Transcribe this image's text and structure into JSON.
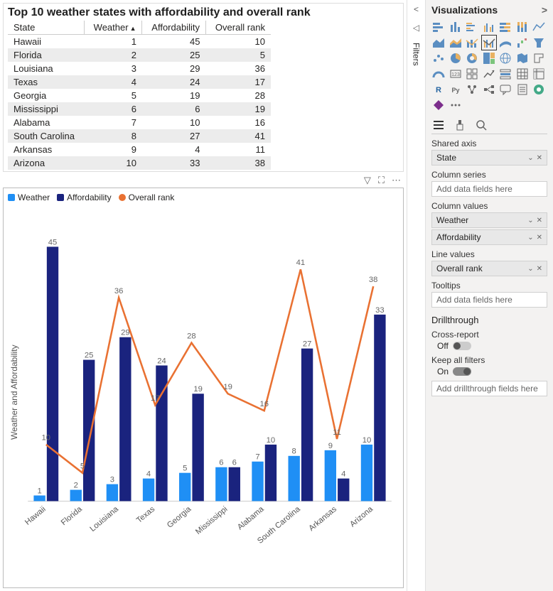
{
  "table": {
    "title": "Top 10 weather states with affordability and overall rank",
    "columns": [
      "State",
      "Weather",
      "Affordability",
      "Overall rank"
    ],
    "rows": [
      [
        "Hawaii",
        1,
        45,
        10
      ],
      [
        "Florida",
        2,
        25,
        5
      ],
      [
        "Louisiana",
        3,
        29,
        36
      ],
      [
        "Texas",
        4,
        24,
        17
      ],
      [
        "Georgia",
        5,
        19,
        28
      ],
      [
        "Mississippi",
        6,
        6,
        19
      ],
      [
        "Alabama",
        7,
        10,
        16
      ],
      [
        "South Carolina",
        8,
        27,
        41
      ],
      [
        "Arkansas",
        9,
        4,
        11
      ],
      [
        "Arizona",
        10,
        33,
        38
      ]
    ],
    "sort_column": 1
  },
  "chart": {
    "type": "combo-bar-line",
    "legend": [
      {
        "label": "Weather",
        "color": "#1f8ff5",
        "shape": "square"
      },
      {
        "label": "Affordability",
        "color": "#1a237e",
        "shape": "square"
      },
      {
        "label": "Overall rank",
        "color": "#e97132",
        "shape": "circle"
      }
    ],
    "y_axis_label": "Weather and Affordability",
    "ymax": 45,
    "categories": [
      "Hawaii",
      "Florida",
      "Louisiana",
      "Texas",
      "Georgia",
      "Mississippi",
      "Alabama",
      "South Carolina",
      "Arkansas",
      "Arizona"
    ],
    "series": {
      "weather": [
        1,
        2,
        3,
        4,
        5,
        6,
        7,
        8,
        9,
        10
      ],
      "affordability": [
        45,
        25,
        29,
        24,
        19,
        6,
        10,
        27,
        4,
        33
      ],
      "overall": [
        10,
        5,
        36,
        17,
        28,
        19,
        16,
        41,
        11,
        38
      ]
    },
    "colors": {
      "weather": "#1f8ff5",
      "affordability": "#1a237e",
      "line": "#e97132",
      "data_label": "#666666"
    },
    "label_fontsize": 11,
    "xaxis_rotation": -40
  },
  "panel": {
    "title": "Visualizations",
    "filters_label": "Filters",
    "sections": {
      "shared_axis": {
        "label": "Shared axis",
        "value": "State"
      },
      "column_series": {
        "label": "Column series",
        "placeholder": "Add data fields here"
      },
      "column_values": {
        "label": "Column values",
        "values": [
          "Weather",
          "Affordability"
        ]
      },
      "line_values": {
        "label": "Line values",
        "value": "Overall rank"
      },
      "tooltips": {
        "label": "Tooltips",
        "placeholder": "Add data fields here"
      },
      "drillthrough": {
        "title": "Drillthrough",
        "cross_report": {
          "label": "Cross-report",
          "state": "Off"
        },
        "keep_filters": {
          "label": "Keep all filters",
          "state": "On"
        },
        "placeholder": "Add drillthrough fields here"
      }
    }
  }
}
